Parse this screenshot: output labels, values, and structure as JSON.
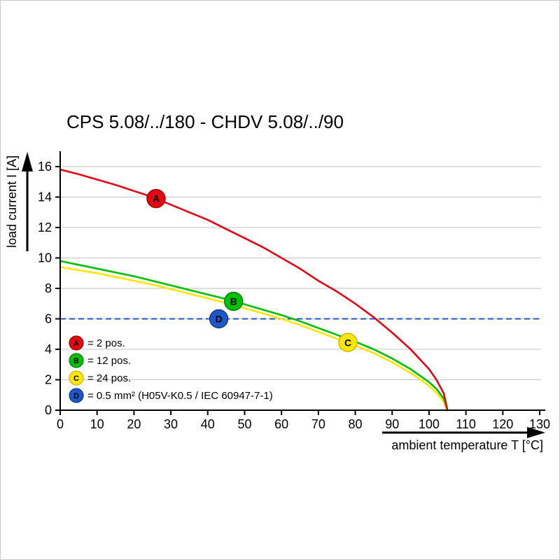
{
  "chart_data": {
    "type": "line",
    "title": "CPS 5.08/../180 - CHDV 5.08/../90",
    "xlabel": "ambient temperature T [°C]",
    "ylabel": "load current I [A]",
    "xlim": [
      0,
      130
    ],
    "ylim": [
      0,
      16
    ],
    "xticks": [
      0,
      10,
      20,
      30,
      40,
      50,
      60,
      70,
      80,
      90,
      100,
      110,
      120,
      130
    ],
    "yticks": [
      0,
      2,
      4,
      6,
      8,
      10,
      12,
      14,
      16
    ],
    "grid": true,
    "legend_position": "inside-lower-left",
    "series": [
      {
        "id": "A",
        "legend": "= 2 pos.",
        "color": "#e30613",
        "edge": "#9a0000",
        "marker": {
          "x": 26,
          "y": 13.9
        },
        "points": [
          [
            0,
            15.8
          ],
          [
            5,
            15.5
          ],
          [
            10,
            15.15
          ],
          [
            15,
            14.8
          ],
          [
            20,
            14.4
          ],
          [
            25,
            14.0
          ],
          [
            30,
            13.5
          ],
          [
            35,
            13.0
          ],
          [
            40,
            12.5
          ],
          [
            45,
            11.9
          ],
          [
            50,
            11.3
          ],
          [
            55,
            10.7
          ],
          [
            60,
            10.0
          ],
          [
            65,
            9.3
          ],
          [
            70,
            8.5
          ],
          [
            75,
            7.8
          ],
          [
            80,
            7.0
          ],
          [
            85,
            6.1
          ],
          [
            90,
            5.1
          ],
          [
            95,
            4.0
          ],
          [
            100,
            2.7
          ],
          [
            102,
            2.0
          ],
          [
            104,
            1.1
          ],
          [
            105,
            0
          ]
        ]
      },
      {
        "id": "B",
        "legend": "= 12 pos.",
        "color": "#00c000",
        "edge": "#007a00",
        "marker": {
          "x": 47,
          "y": 7.15
        },
        "points": [
          [
            0,
            9.8
          ],
          [
            5,
            9.55
          ],
          [
            10,
            9.3
          ],
          [
            15,
            9.05
          ],
          [
            20,
            8.8
          ],
          [
            25,
            8.5
          ],
          [
            30,
            8.2
          ],
          [
            35,
            7.9
          ],
          [
            40,
            7.6
          ],
          [
            45,
            7.3
          ],
          [
            50,
            6.95
          ],
          [
            55,
            6.6
          ],
          [
            60,
            6.25
          ],
          [
            65,
            5.85
          ],
          [
            70,
            5.4
          ],
          [
            75,
            4.95
          ],
          [
            80,
            4.5
          ],
          [
            85,
            4.0
          ],
          [
            90,
            3.4
          ],
          [
            95,
            2.7
          ],
          [
            100,
            1.85
          ],
          [
            102,
            1.4
          ],
          [
            104,
            0.75
          ],
          [
            105,
            0
          ]
        ]
      },
      {
        "id": "C",
        "legend": "= 24 pos.",
        "color": "#ffe600",
        "edge": "#c9b400",
        "marker": {
          "x": 78,
          "y": 4.45
        },
        "points": [
          [
            0,
            9.4
          ],
          [
            5,
            9.2
          ],
          [
            10,
            9.0
          ],
          [
            15,
            8.75
          ],
          [
            20,
            8.5
          ],
          [
            25,
            8.25
          ],
          [
            30,
            7.95
          ],
          [
            35,
            7.65
          ],
          [
            40,
            7.35
          ],
          [
            45,
            7.05
          ],
          [
            50,
            6.7
          ],
          [
            55,
            6.35
          ],
          [
            60,
            6.0
          ],
          [
            65,
            5.6
          ],
          [
            70,
            5.15
          ],
          [
            75,
            4.7
          ],
          [
            80,
            4.25
          ],
          [
            85,
            3.75
          ],
          [
            90,
            3.15
          ],
          [
            95,
            2.45
          ],
          [
            100,
            1.6
          ],
          [
            102,
            1.15
          ],
          [
            104,
            0.55
          ],
          [
            104.8,
            0
          ]
        ]
      }
    ],
    "reference_line": {
      "id": "D",
      "legend": "= 0.5 mm² (H05V-K0.5 / IEC 60947-7-1)",
      "color": "#1f56c8",
      "edge": "#0d3a8f",
      "y": 6,
      "style": "dashed",
      "marker": {
        "x": 43,
        "y": 6
      }
    }
  }
}
